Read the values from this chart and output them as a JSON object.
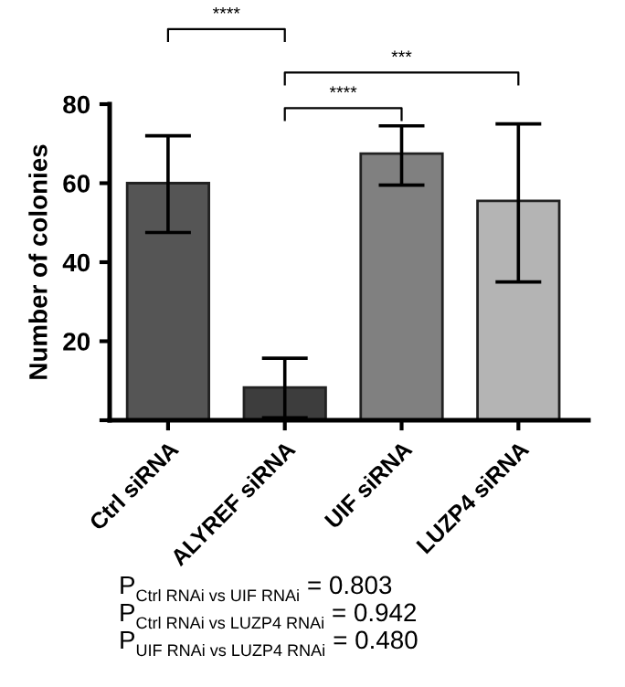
{
  "chart_data": {
    "type": "bar",
    "ylabel": "Number of colonies",
    "categories": [
      "Ctrl siRNA",
      "ALYREF siRNA",
      "UIF siRNA",
      "LUZP4 siRNA"
    ],
    "values": [
      60,
      8.3,
      67.5,
      55.5
    ],
    "colors": [
      "#555555",
      "#3d3d3d",
      "#808080",
      "#b4b4b4"
    ],
    "errors": [
      [
        47.5,
        72
      ],
      [
        0.6,
        15.7
      ],
      [
        59.5,
        74.5
      ],
      [
        35,
        75
      ]
    ],
    "ylim": [
      0,
      80
    ],
    "yticks": [
      {
        "value": 0,
        "label": null
      },
      20,
      40,
      60,
      80
    ],
    "grid": false,
    "legend": false,
    "annotations": [
      "****",
      "****",
      "***",
      "P$_{Ctrl RNAi vs UIF RNAi}$ = 0.803",
      "P$_{Ctrl RNAi vs LUZP4 RNAi}$ = 0.942",
      "P$_{UIF RNAi vs LUZP4 RNAi}$ = 0.480"
    ]
  }
}
